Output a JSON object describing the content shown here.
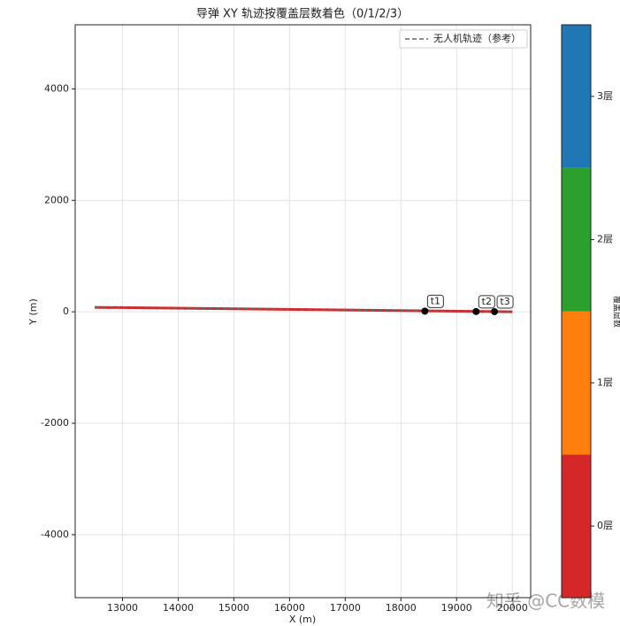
{
  "chart_data": {
    "type": "line",
    "title": "导弹 XY 轨迹按覆盖层数着色（0/1/2/3）",
    "xlabel": "X (m)",
    "ylabel": "Y (m)",
    "xlim": [
      12150,
      20330
    ],
    "xticks": [
      13000,
      14000,
      15000,
      16000,
      17000,
      18000,
      19000,
      20000
    ],
    "ylim": [
      -5130,
      5150
    ],
    "yticks": [
      -4000,
      -2000,
      0,
      2000,
      4000
    ],
    "grid": true,
    "legend": "upper right",
    "series": [
      {
        "name": "无人机轨迹（参考）",
        "color": "#666666",
        "style": "dashed",
        "x": [
          12500,
          20000
        ],
        "y": [
          85,
          0
        ]
      }
    ],
    "trajectory": {
      "color": "#d62728",
      "x": [
        12500,
        20000
      ],
      "y": [
        80,
        0
      ]
    },
    "points": [
      {
        "label": "t1",
        "x": 18430,
        "y": 12
      },
      {
        "label": "t2",
        "x": 19350,
        "y": 5
      },
      {
        "label": "t3",
        "x": 19680,
        "y": 3
      }
    ],
    "colorbar": {
      "label": "覆盖层数",
      "lim": [
        -0.5,
        3.5
      ],
      "ticks": [
        {
          "value": 0,
          "label": "0层"
        },
        {
          "value": 1,
          "label": "1层"
        },
        {
          "value": 2,
          "label": "2层"
        },
        {
          "value": 3,
          "label": "3层"
        }
      ],
      "colors": [
        "#d62728",
        "#ff7f0e",
        "#2ca02c",
        "#1f77b4"
      ]
    },
    "watermark": "知乎 @CC数模"
  }
}
